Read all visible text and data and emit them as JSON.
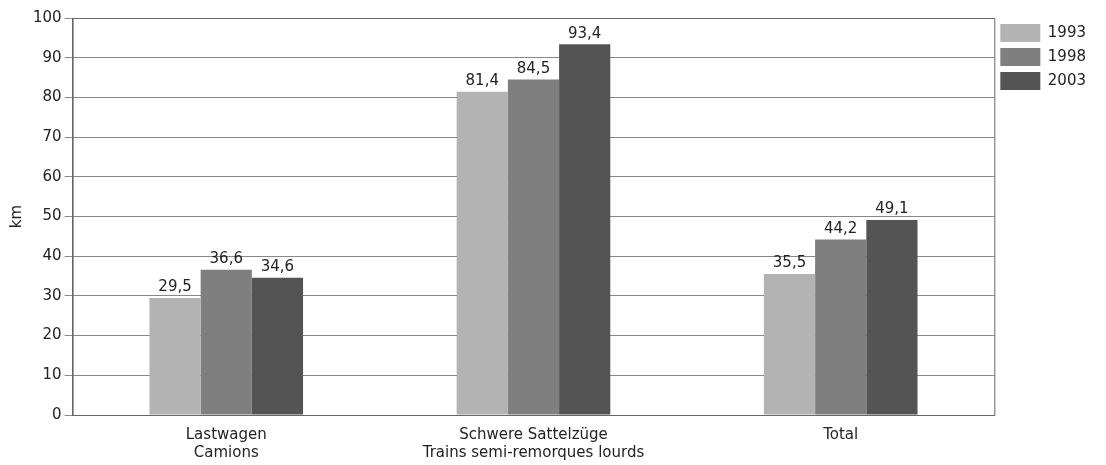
{
  "chart_data": {
    "type": "bar",
    "ylabel": "km",
    "categories": [
      "Lastwagen\nCamions",
      "Schwere Sattelzüge\nTrains semi-remorques lourds",
      "Total"
    ],
    "series": [
      {
        "name": "1993",
        "color": "#b3b3b3",
        "values": [
          29.5,
          81.4,
          35.5
        ],
        "value_labels": [
          "29,5",
          "81,4",
          "35,5"
        ]
      },
      {
        "name": "1998",
        "color": "#7f7f7f",
        "values": [
          36.6,
          84.5,
          44.2
        ],
        "value_labels": [
          "36,6",
          "84,5",
          "44,2"
        ]
      },
      {
        "name": "2003",
        "color": "#545454",
        "values": [
          34.6,
          93.4,
          49.1
        ],
        "value_labels": [
          "34,6",
          "93,4",
          "49,1"
        ]
      }
    ],
    "ylim": [
      0,
      100
    ],
    "yticks": [
      0,
      10,
      20,
      30,
      40,
      50,
      60,
      70,
      80,
      90,
      100
    ],
    "grid": "y",
    "legend": "top right"
  }
}
